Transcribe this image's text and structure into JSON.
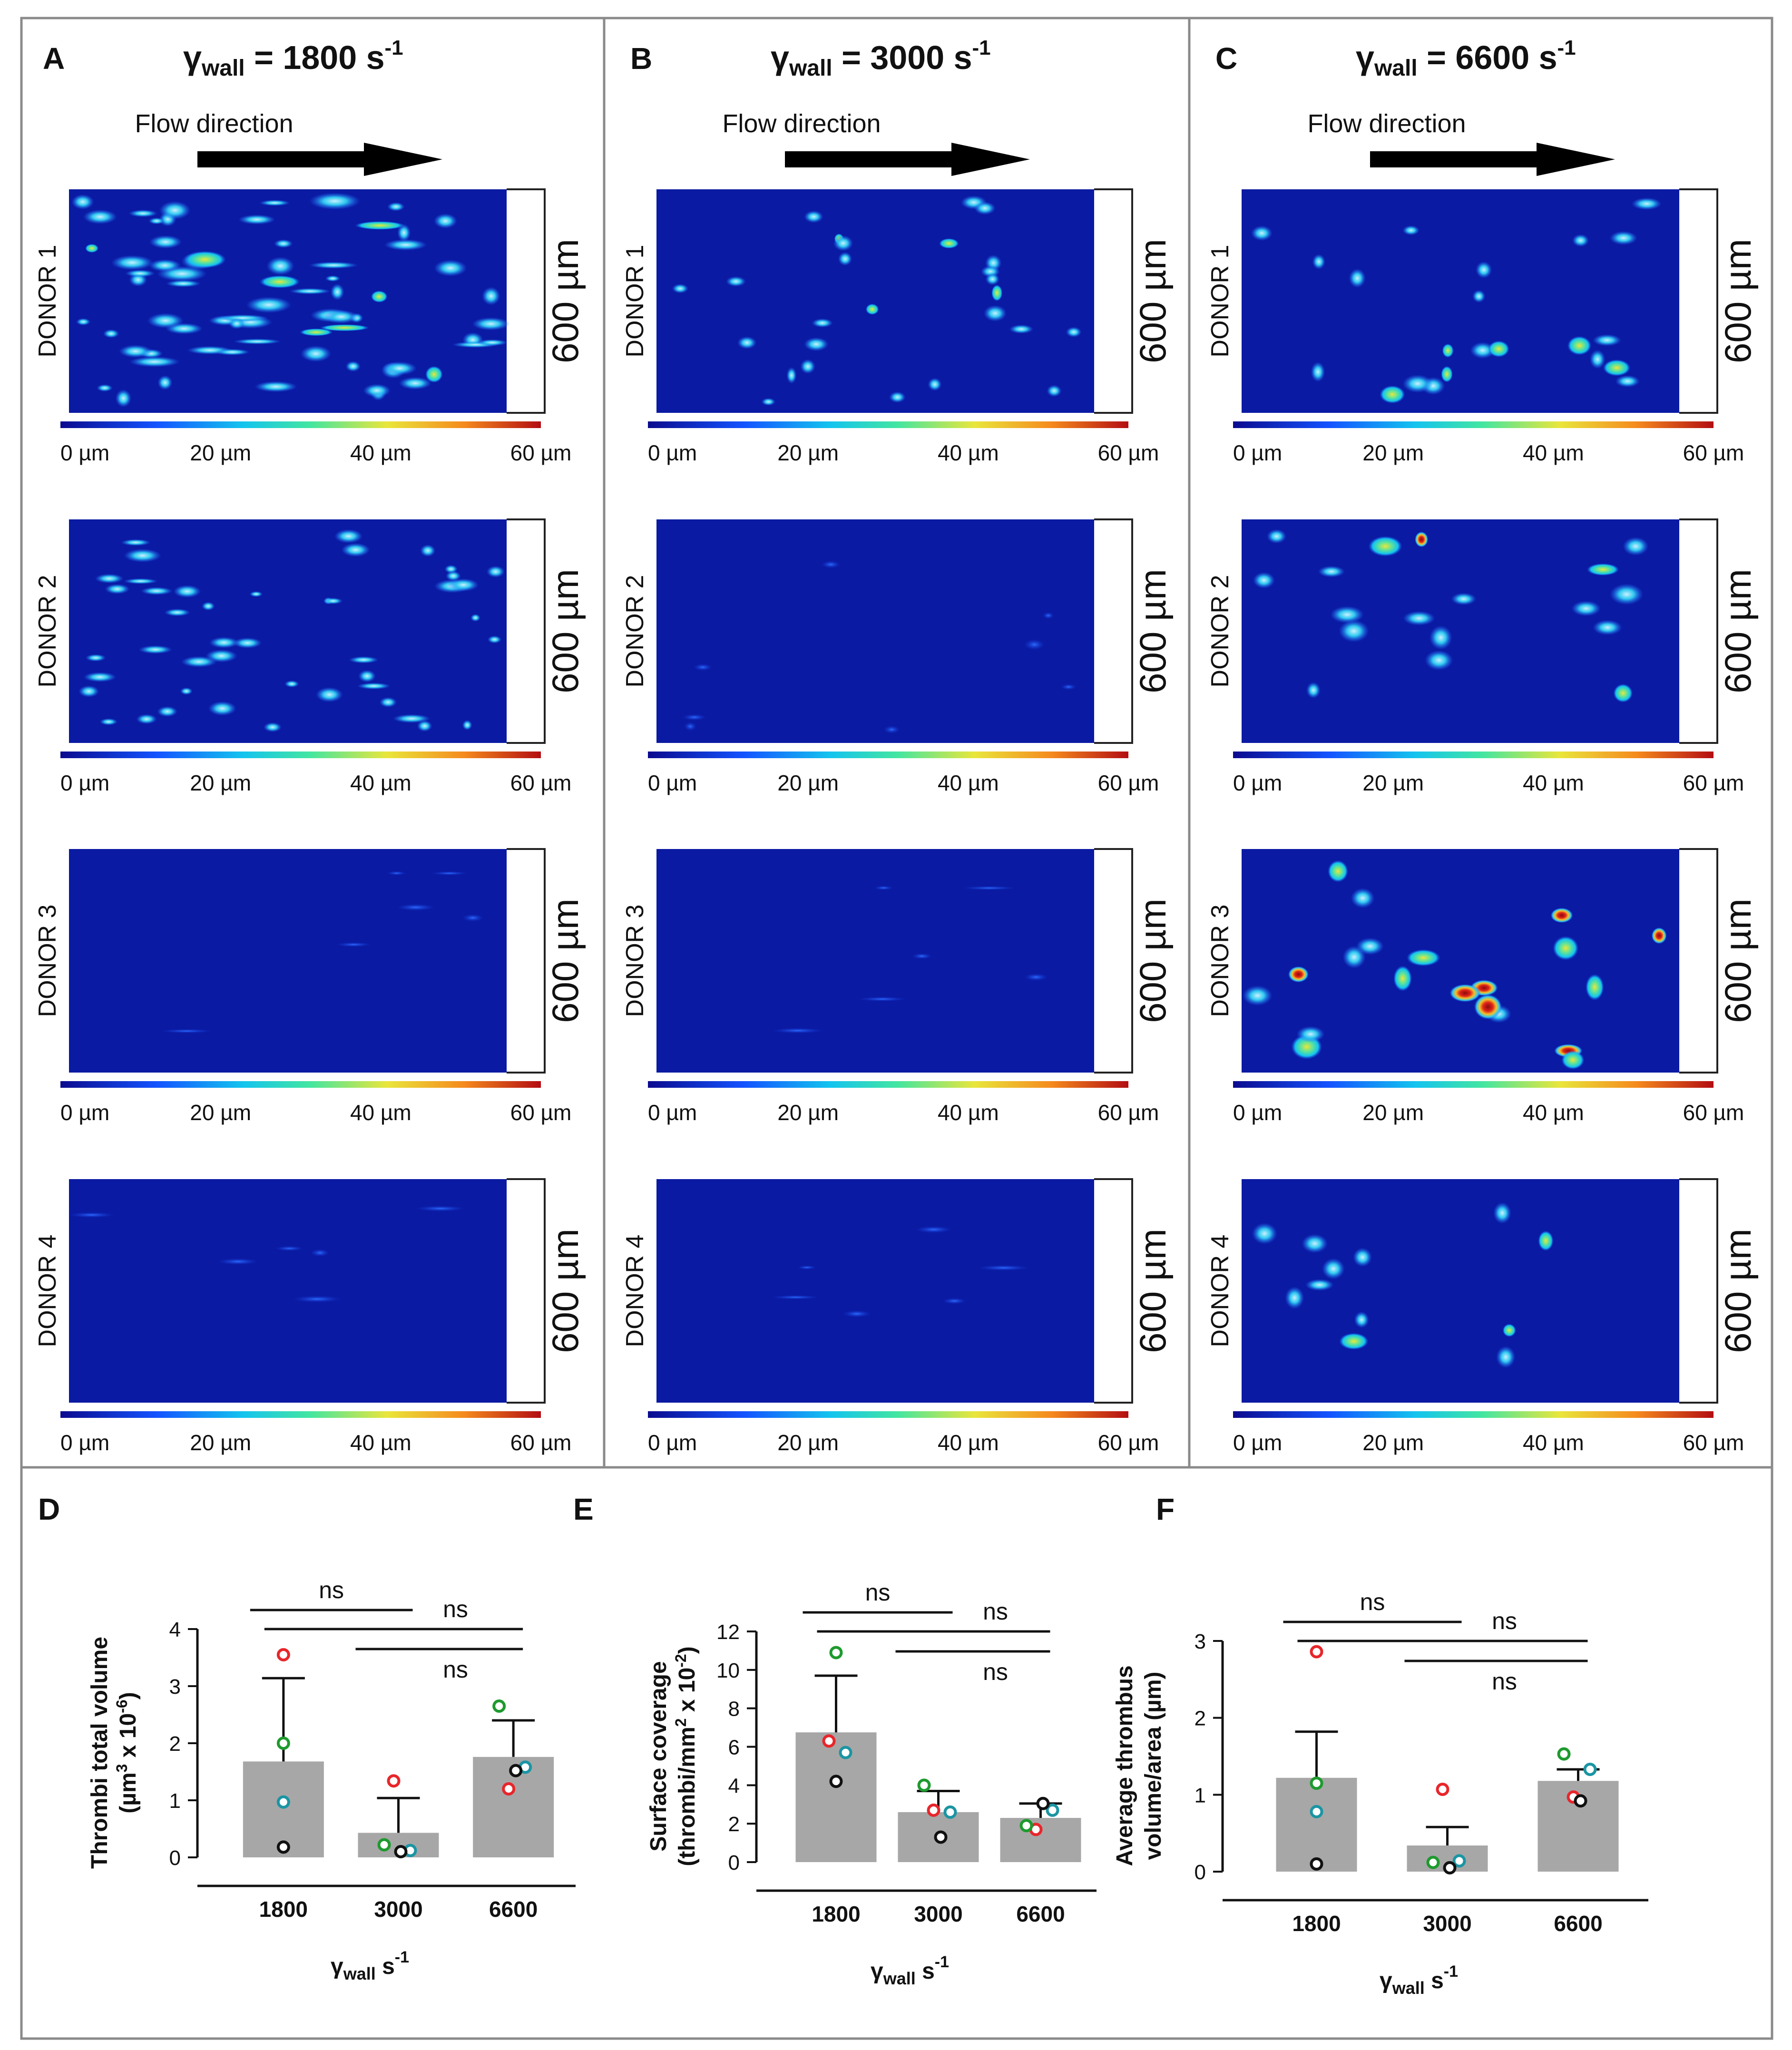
{
  "colors": {
    "heat_bg": "#0a1aa2",
    "bar": "#a7a7a7",
    "red": "#e8262b",
    "green": "#1e9a2e",
    "cyan": "#1b95a3",
    "black": "#111111"
  },
  "colorbar": {
    "stops": [
      "#0b0b8e",
      "#1453ff",
      "#13c4ee",
      "#43e6a0",
      "#e9e63b",
      "#f58a1d",
      "#b30d12"
    ],
    "ticks": [
      "0 µm",
      "20 µm",
      "40 µm",
      "60 µm"
    ]
  },
  "heatmap_scale": {
    "label": "600 µm",
    "flow_label": "Flow direction",
    "min_um": 0,
    "max_um": 60
  },
  "columns": [
    {
      "letter": "A",
      "gamma": "γ",
      "sub": "wall",
      "eq": "= 1800 s",
      "sup": "-1"
    },
    {
      "letter": "B",
      "gamma": "γ",
      "sub": "wall",
      "eq": "= 3000 s",
      "sup": "-1"
    },
    {
      "letter": "C",
      "gamma": "γ",
      "sub": "wall",
      "eq": "= 6600 s",
      "sup": "-1"
    }
  ],
  "donors": [
    "DONOR 1",
    "DONOR 2",
    "DONOR 3",
    "DONOR 4"
  ],
  "chart_data": [
    {
      "letter": "D",
      "type": "bar",
      "categories": [
        "1800",
        "3000",
        "6600"
      ],
      "means": [
        1.68,
        0.43,
        1.76
      ],
      "errors": [
        3.14,
        1.04,
        2.4
      ],
      "points": [
        [
          3.55,
          2.0,
          0.97,
          0.18
        ],
        [
          1.34,
          0.22,
          0.12,
          0.1
        ],
        [
          1.2,
          2.65,
          1.58,
          1.52
        ]
      ],
      "ylim": [
        0,
        4
      ],
      "yticks": [
        "0",
        "1",
        "2",
        "3",
        "4"
      ],
      "ylabel": [
        "Thrombi total volume",
        "(µm",
        "3",
        " x 10",
        "-6",
        ")"
      ],
      "xlabel_gamma": "γ",
      "xlabel_sub": "wall",
      "xlabel_unit": " s",
      "xlabel_sup": "-1",
      "brackets": [
        {
          "from": 0,
          "to": 1,
          "label": "ns"
        },
        {
          "from": 0,
          "to": 2,
          "label": "ns"
        },
        {
          "from": 1,
          "to": 2,
          "label": "ns"
        }
      ]
    },
    {
      "letter": "E",
      "type": "bar",
      "categories": [
        "1800",
        "3000",
        "6600"
      ],
      "means": [
        6.75,
        2.6,
        2.3
      ],
      "errors": [
        9.7,
        3.7,
        3.05
      ],
      "points": [
        [
          6.3,
          10.9,
          5.7,
          4.2
        ],
        [
          2.7,
          4.0,
          2.6,
          1.3
        ],
        [
          1.7,
          1.9,
          2.7,
          3.05
        ]
      ],
      "ylim": [
        0,
        12
      ],
      "yticks": [
        "0",
        "2",
        "4",
        "6",
        "8",
        "10",
        "12"
      ],
      "ylabel": [
        "Surface coverage",
        "(thrombi/mm",
        "2",
        " x 10",
        "-2",
        ")"
      ],
      "xlabel_gamma": "γ",
      "xlabel_sub": "wall",
      "xlabel_unit": " s",
      "xlabel_sup": "-1",
      "brackets": [
        {
          "from": 0,
          "to": 1,
          "label": "ns"
        },
        {
          "from": 0,
          "to": 2,
          "label": "ns"
        },
        {
          "from": 1,
          "to": 2,
          "label": "ns"
        }
      ]
    },
    {
      "letter": "F",
      "type": "bar",
      "categories": [
        "1800",
        "3000",
        "6600"
      ],
      "means": [
        1.22,
        0.34,
        1.18
      ],
      "errors": [
        1.82,
        0.58,
        1.33
      ],
      "points": [
        [
          2.86,
          1.15,
          0.78,
          0.1
        ],
        [
          1.07,
          0.12,
          0.14,
          0.05
        ],
        [
          0.97,
          1.53,
          1.33,
          0.92
        ]
      ],
      "ylim": [
        0,
        3
      ],
      "yticks": [
        "0",
        "1",
        "2",
        "3"
      ],
      "ylabel": [
        "Average thrombus",
        "volume/area (µm)",
        "",
        "",
        "",
        ""
      ],
      "xlabel_gamma": "γ",
      "xlabel_sub": "wall",
      "xlabel_unit": " s",
      "xlabel_sup": "-1",
      "brackets": [
        {
          "from": 0,
          "to": 1,
          "label": "ns"
        },
        {
          "from": 0,
          "to": 2,
          "label": "ns"
        },
        {
          "from": 1,
          "to": 2,
          "label": "ns"
        }
      ]
    }
  ]
}
